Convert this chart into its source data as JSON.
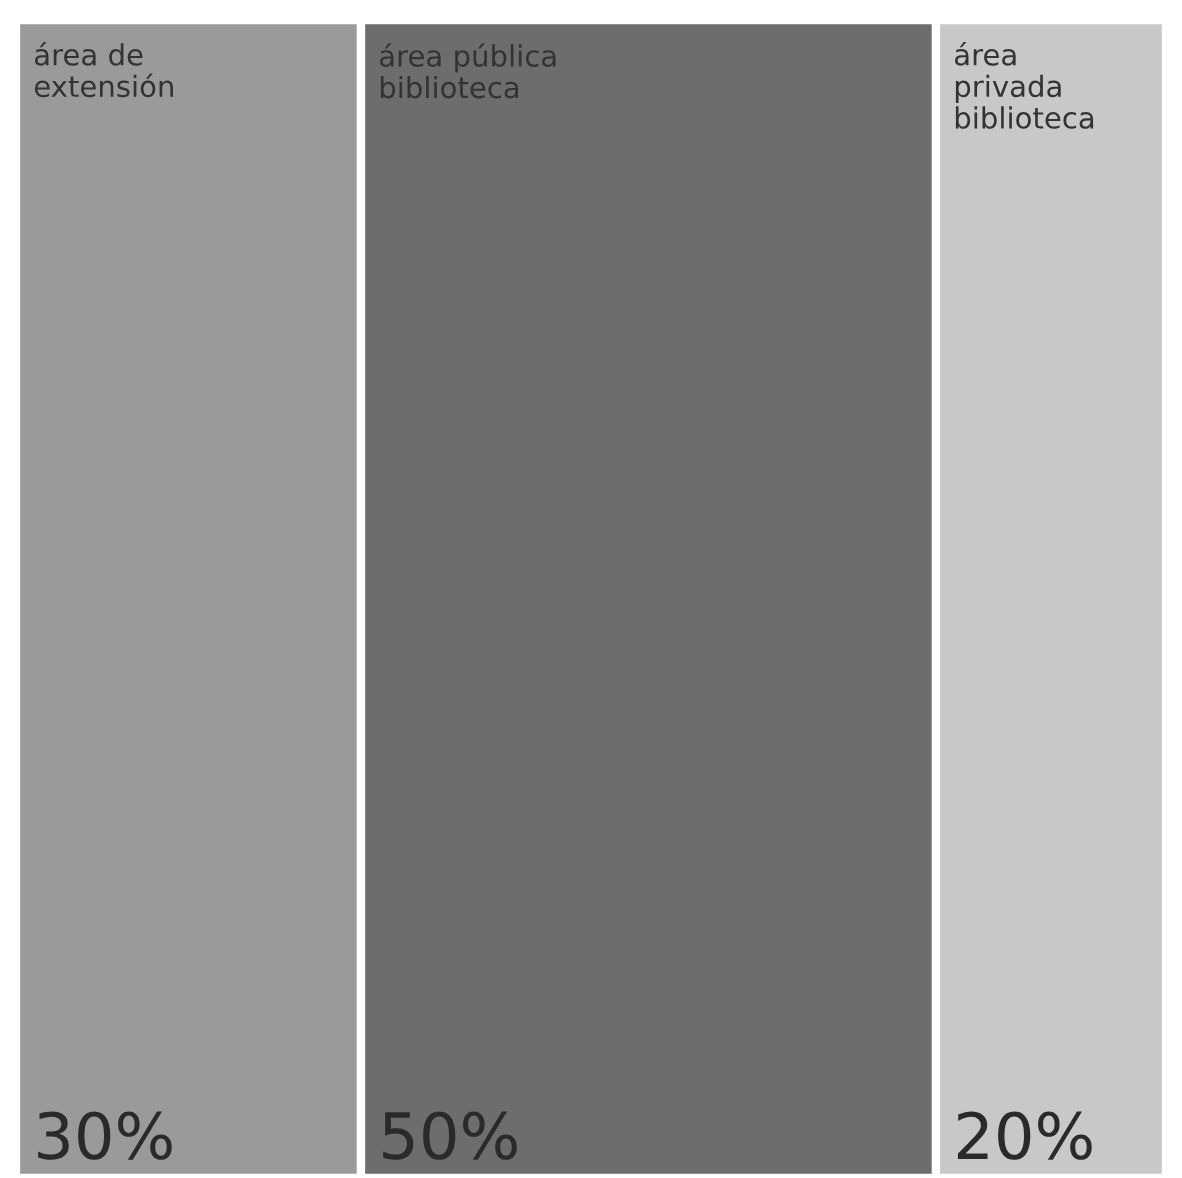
{
  "chart_data": {
    "type": "bar",
    "orientation": "horizontal",
    "stacked": true,
    "categories": [
      null
    ],
    "xlim": [
      0,
      100
    ],
    "series": [
      {
        "name": "área de\nextensión",
        "color": "#9a9a9a",
        "values": [
          30
        ],
        "value_labels": [
          "30%"
        ]
      },
      {
        "name": "área pública\nbiblioteca",
        "color": "#6e6c6d",
        "values": [
          50
        ],
        "value_labels": [
          "50%"
        ]
      },
      {
        "name": "área\nprivada\nbiblioteca",
        "color": "#c8c8c8",
        "values": [
          20
        ],
        "value_labels": [
          "20%"
        ]
      }
    ]
  }
}
